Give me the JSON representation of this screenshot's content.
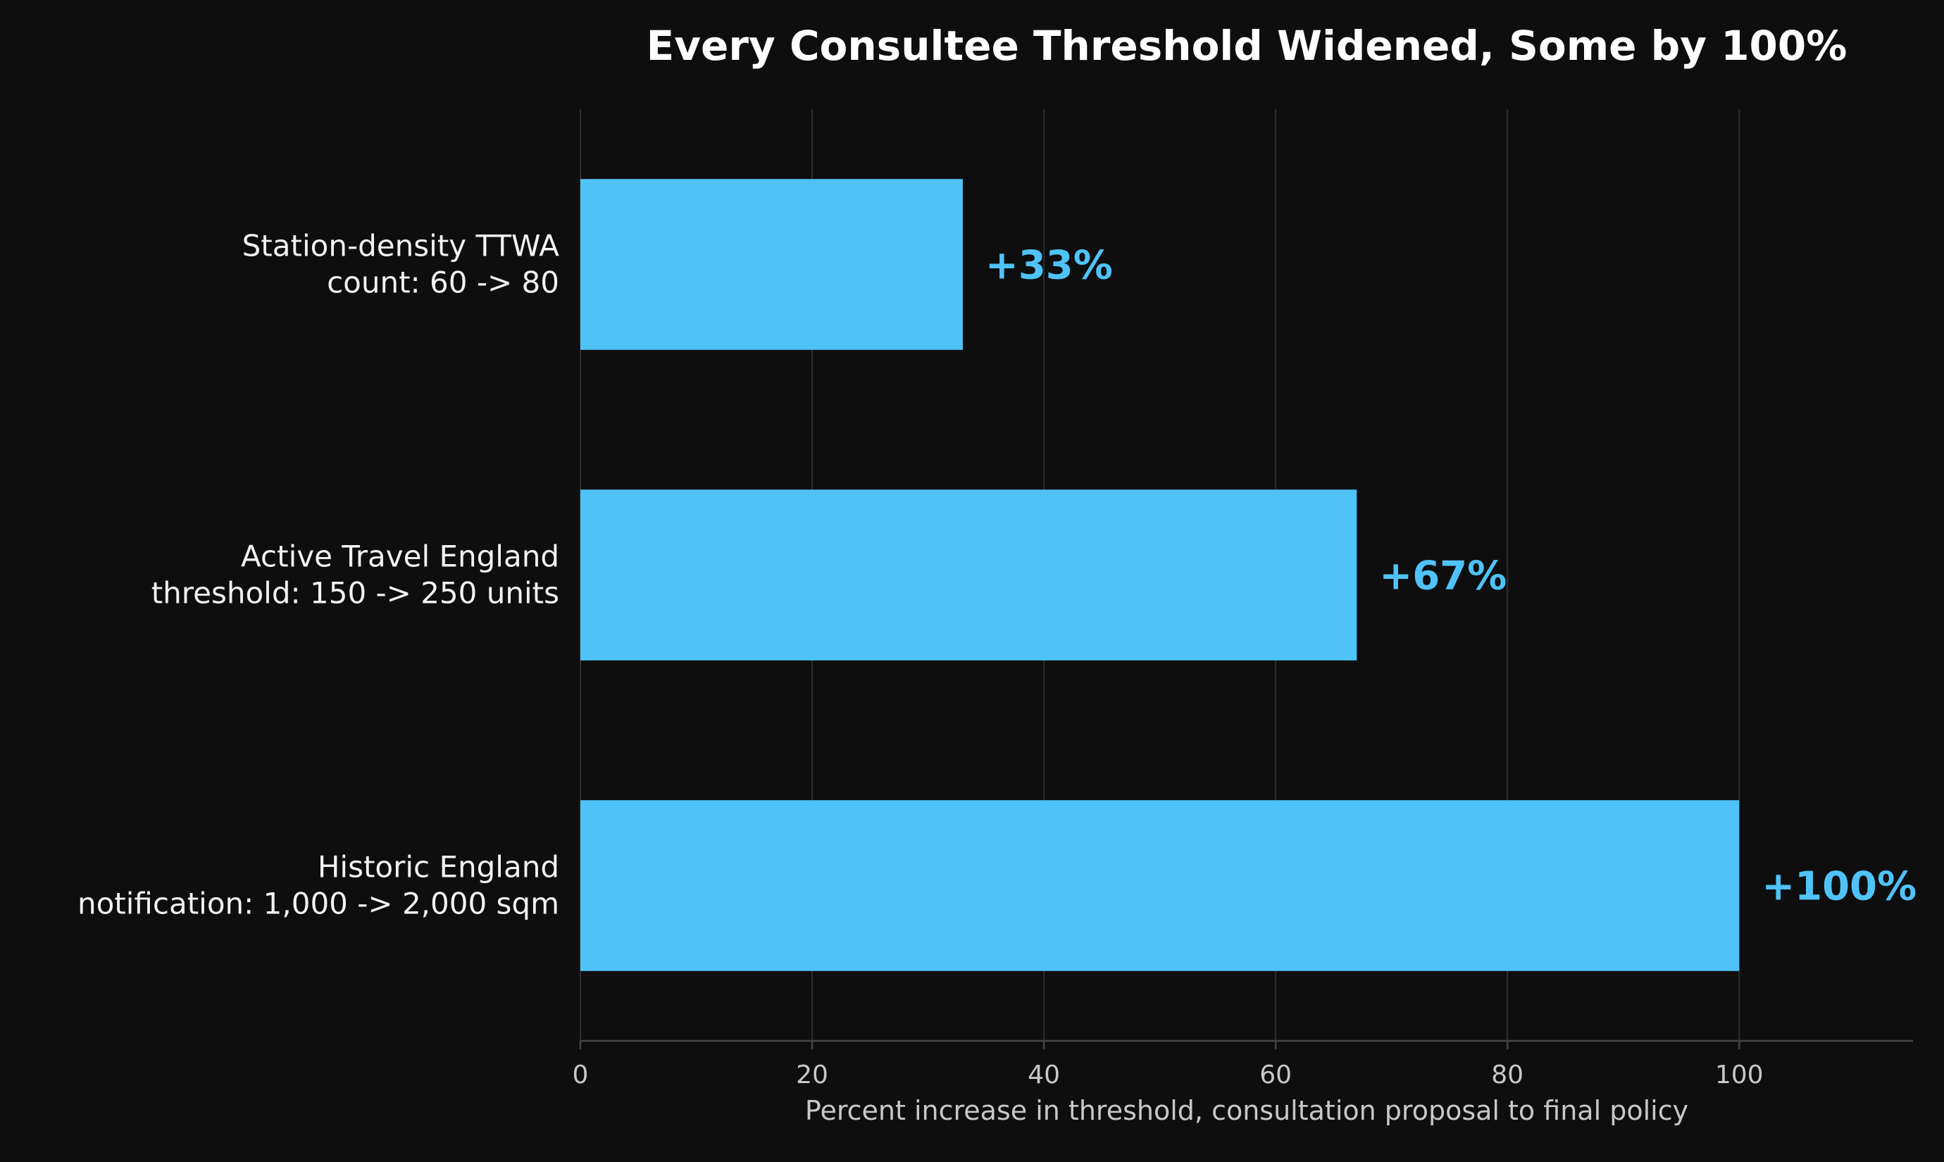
{
  "colors": {
    "background": "#0e0e0e",
    "bar": "#4fc3f7",
    "label_accent": "#4fc3f7",
    "text": "#f2f2f2",
    "grid": "#2e2e2e"
  },
  "chart_data": {
    "type": "bar",
    "orientation": "horizontal",
    "title": "Every Consultee Threshold Widened, Some by 100%",
    "xlabel": "Percent increase in threshold, consultation proposal to final policy",
    "ylabel": "",
    "xlim": [
      0,
      115
    ],
    "xticks": [
      "0",
      "20",
      "40",
      "60",
      "80",
      "100"
    ],
    "grid": "vertical",
    "categories": [
      [
        "Station-density TTWA",
        "count: 60 -> 80"
      ],
      [
        "Active Travel England",
        "threshold: 150 -> 250 units"
      ],
      [
        "Historic England",
        "notification: 1,000 -> 2,000 sqm"
      ]
    ],
    "values": [
      33,
      67,
      100
    ],
    "data_labels": [
      "+33%",
      "+67%",
      "+100%"
    ]
  }
}
